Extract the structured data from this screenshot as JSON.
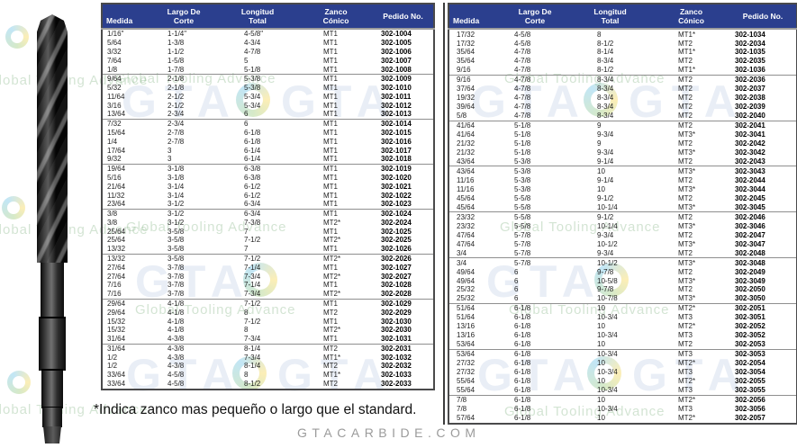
{
  "page": {
    "footnote": "*Indica zanco mas pequeño o largo que el standard.",
    "website": "GTACARBIDE.COM"
  },
  "watermark": {
    "brand": "GTA",
    "slogan": "Global Tooling Advance"
  },
  "colors": {
    "header_bg": "#2b3f8e",
    "header_text": "#ffffff",
    "body_text": "#1f1f1f",
    "pedido_text": "#000000",
    "table_border": "#4a4a4b",
    "group_line": "#8f8f8f",
    "website_text": "#9b9b9b",
    "logo_green": "#6db33f",
    "logo_blue": "#29a8df",
    "logo_yellow": "#f5c400"
  },
  "columns": [
    "Medida",
    "Largo De\nCorte",
    "Longitud\nTotal",
    "Zanco\nCónico",
    "Pedido No."
  ],
  "tables": [
    {
      "name": "left",
      "rows": [
        [
          "1/16\"",
          "1-1/4\"",
          "4-5/8\"",
          "MT1",
          "302-1004"
        ],
        [
          "5/64",
          "1-3/8",
          "4-3/4",
          "MT1",
          "302-1005"
        ],
        [
          "3/32",
          "1-1/2",
          "4-7/8",
          "MT1",
          "302-1006"
        ],
        [
          "7/64",
          "1-5/8",
          "5",
          "MT1",
          "302-1007"
        ],
        [
          "1/8",
          "1-7/8",
          "5-1/8",
          "MT1",
          "302-1008"
        ],
        [
          "9/64",
          "2-1/8",
          "5-3/8",
          "MT1",
          "302-1009"
        ],
        [
          "5/32",
          "2-1/8",
          "5-3/8",
          "MT1",
          "302-1010"
        ],
        [
          "11/64",
          "2-1/2",
          "5-3/4",
          "MT1",
          "302-1011"
        ],
        [
          "3/16",
          "2-1/2",
          "5-3/4",
          "MT1",
          "302-1012"
        ],
        [
          "13/64",
          "2-3/4",
          "6",
          "MT1",
          "302-1013"
        ],
        [
          "7/32",
          "2-3/4",
          "6",
          "MT1",
          "302-1014"
        ],
        [
          "15/64",
          "2-7/8",
          "6-1/8",
          "MT1",
          "302-1015"
        ],
        [
          "1/4",
          "2-7/8",
          "6-1/8",
          "MT1",
          "302-1016"
        ],
        [
          "17/64",
          "3",
          "6-1/4",
          "MT1",
          "302-1017"
        ],
        [
          "9/32",
          "3",
          "6-1/4",
          "MT1",
          "302-1018"
        ],
        [
          "19/64",
          "3-1/8",
          "6-3/8",
          "MT1",
          "302-1019"
        ],
        [
          "5/16",
          "3-1/8",
          "6-3/8",
          "MT1",
          "302-1020"
        ],
        [
          "21/64",
          "3-1/4",
          "6-1/2",
          "MT1",
          "302-1021"
        ],
        [
          "11/32",
          "3-1/4",
          "6-1/2",
          "MT1",
          "302-1022"
        ],
        [
          "23/64",
          "3-1/2",
          "6-3/4",
          "MT1",
          "302-1023"
        ],
        [
          "3/8",
          "3-1/2",
          "6-3/4",
          "MT1",
          "302-1024"
        ],
        [
          "3/8",
          "3-1/2",
          "7-3/8",
          "MT2*",
          "302-2024"
        ],
        [
          "25/64",
          "3-5/8",
          "7",
          "MT1",
          "302-1025"
        ],
        [
          "25/64",
          "3-5/8",
          "7-1/2",
          "MT2*",
          "302-2025"
        ],
        [
          "13/32",
          "3-5/8",
          "7",
          "MT1",
          "302-1026"
        ],
        [
          "13/32",
          "3-5/8",
          "7-1/2",
          "MT2*",
          "302-2026"
        ],
        [
          "27/64",
          "3-7/8",
          "7-1/4",
          "MT1",
          "302-1027"
        ],
        [
          "27/64",
          "3-7/8",
          "7-3/4",
          "MT2*",
          "302-2027"
        ],
        [
          "7/16",
          "3-7/8",
          "7-1/4",
          "MT1",
          "302-1028"
        ],
        [
          "7/16",
          "3-7/8",
          "7-3/4",
          "MT2*",
          "302-2028"
        ],
        [
          "29/64",
          "4-1/8",
          "7-1/2",
          "MT1",
          "302-1029"
        ],
        [
          "29/64",
          "4-1/8",
          "8",
          "MT2",
          "302-2029"
        ],
        [
          "15/32",
          "4-1/8",
          "7-1/2",
          "MT1",
          "302-1030"
        ],
        [
          "15/32",
          "4-1/8",
          "8",
          "MT2*",
          "302-2030"
        ],
        [
          "31/64",
          "4-3/8",
          "7-3/4",
          "MT1",
          "302-1031"
        ],
        [
          "31/64",
          "4-3/8",
          "8-1/4",
          "MT2",
          "302-2031"
        ],
        [
          "1/2",
          "4-3/8",
          "7-3/4",
          "MT1*",
          "302-1032"
        ],
        [
          "1/2",
          "4-3/8",
          "8-1/4",
          "MT2",
          "302-2032"
        ],
        [
          "33/64",
          "4-5/8",
          "8",
          "MT1*",
          "302-1033"
        ],
        [
          "33/64",
          "4-5/8",
          "8-1/2",
          "MT2",
          "302-2033"
        ]
      ]
    },
    {
      "name": "right",
      "rows": [
        [
          "17/32",
          "4-5/8",
          "8",
          "MT1*",
          "302-1034"
        ],
        [
          "17/32",
          "4-5/8",
          "8-1/2",
          "MT2",
          "302-2034"
        ],
        [
          "35/64",
          "4-7/8",
          "8-1/4",
          "MT1*",
          "302-1035"
        ],
        [
          "35/64",
          "4-7/8",
          "8-3/4",
          "MT2",
          "302-2035"
        ],
        [
          "9/16",
          "4-7/8",
          "8-1/2",
          "MT1*",
          "302-1036"
        ],
        [
          "9/16",
          "4-7/8",
          "8-3/4",
          "MT2",
          "302-2036"
        ],
        [
          "37/64",
          "4-7/8",
          "8-3/4",
          "MT2",
          "302-2037"
        ],
        [
          "19/32",
          "4-7/8",
          "8-3/4",
          "MT2",
          "302-2038"
        ],
        [
          "39/64",
          "4-7/8",
          "8-3/4",
          "MT2",
          "302-2039"
        ],
        [
          "5/8",
          "4-7/8",
          "8-3/4",
          "MT2",
          "302-2040"
        ],
        [
          "41/64",
          "5-1/8",
          "9",
          "MT2",
          "302-2041"
        ],
        [
          "41/64",
          "5-1/8",
          "9-3/4",
          "MT3*",
          "302-3041"
        ],
        [
          "21/32",
          "5-1/8",
          "9",
          "MT2",
          "302-2042"
        ],
        [
          "21/32",
          "5-1/8",
          "9-3/4",
          "MT3*",
          "302-3042"
        ],
        [
          "43/64",
          "5-3/8",
          "9-1/4",
          "MT2",
          "302-2043"
        ],
        [
          "43/64",
          "5-3/8",
          "10",
          "MT3*",
          "302-3043"
        ],
        [
          "11/16",
          "5-3/8",
          "9-1/4",
          "MT2",
          "302-2044"
        ],
        [
          "11/16",
          "5-3/8",
          "10",
          "MT3*",
          "302-3044"
        ],
        [
          "45/64",
          "5-5/8",
          "9-1/2",
          "MT2",
          "302-2045"
        ],
        [
          "45/64",
          "5-5/8",
          "10-1/4",
          "MT3*",
          "302-3045"
        ],
        [
          "23/32",
          "5-5/8",
          "9-1/2",
          "MT2",
          "302-2046"
        ],
        [
          "23/32",
          "5-5/8",
          "10-1/4",
          "MT3*",
          "302-3046"
        ],
        [
          "47/64",
          "5-7/8",
          "9-3/4",
          "MT2",
          "302-2047"
        ],
        [
          "47/64",
          "5-7/8",
          "10-1/2",
          "MT3*",
          "302-3047"
        ],
        [
          "3/4",
          "5-7/8",
          "9-3/4",
          "MT2",
          "302-2048"
        ],
        [
          "3/4",
          "5-7/8",
          "10-1/2",
          "MT3*",
          "302-3048"
        ],
        [
          "49/64",
          "6",
          "9-7/8",
          "MT2",
          "302-2049"
        ],
        [
          "49/64",
          "6",
          "10-5/8",
          "MT3*",
          "302-3049"
        ],
        [
          "25/32",
          "6",
          "9-7/8",
          "MT2",
          "302-2050"
        ],
        [
          "25/32",
          "6",
          "10-7/8",
          "MT3*",
          "302-3050"
        ],
        [
          "51/64",
          "6-1/8",
          "10",
          "MT2*",
          "302-2051"
        ],
        [
          "51/64",
          "6-1/8",
          "10-3/4",
          "MT3",
          "302-3051"
        ],
        [
          "13/16",
          "6-1/8",
          "10",
          "MT2*",
          "302-2052"
        ],
        [
          "13/16",
          "6-1/8",
          "10-3/4",
          "MT3",
          "302-3052"
        ],
        [
          "53/64",
          "6-1/8",
          "10",
          "MT2",
          "302-2053"
        ],
        [
          "53/64",
          "6-1/8",
          "10-3/4",
          "MT3",
          "302-3053"
        ],
        [
          "27/32",
          "6-1/8",
          "10",
          "MT2*",
          "302-2054"
        ],
        [
          "27/32",
          "6-1/8",
          "10-3/4",
          "MT3",
          "302-3054"
        ],
        [
          "55/64",
          "6-1/8",
          "10",
          "MT2*",
          "302-2055"
        ],
        [
          "55/64",
          "6-1/8",
          "10-3/4",
          "MT3",
          "302-3055"
        ],
        [
          "7/8",
          "6-1/8",
          "10",
          "MT2*",
          "302-2056"
        ],
        [
          "7/8",
          "6-1/8",
          "10-3/4",
          "MT3",
          "302-3056"
        ],
        [
          "57/64",
          "6-1/8",
          "10",
          "MT2*",
          "302-2057"
        ]
      ]
    }
  ]
}
